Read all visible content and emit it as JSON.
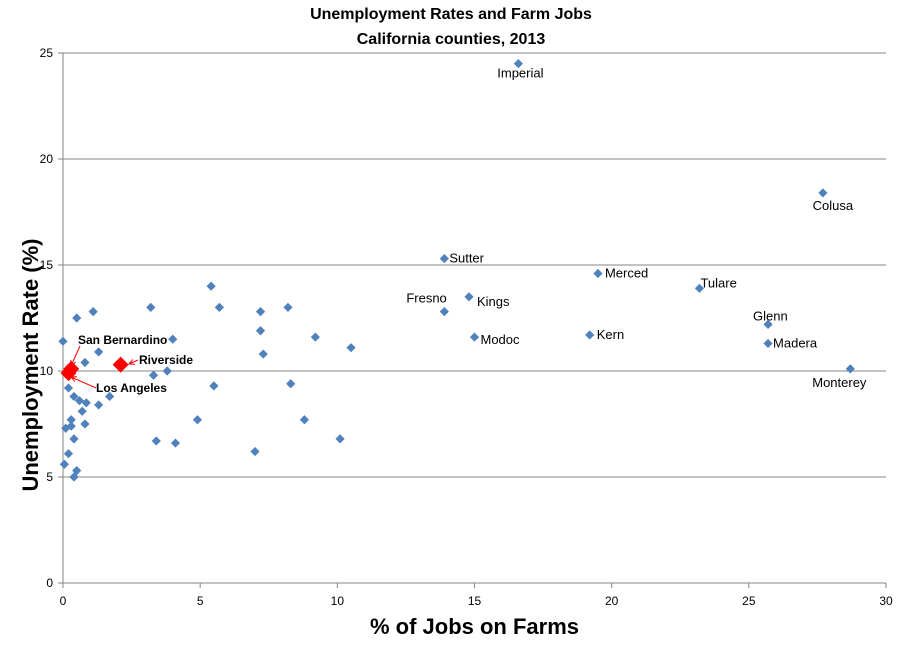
{
  "chart_data": {
    "type": "scatter",
    "title": "Unemployment Rates and Farm Jobs",
    "subtitle": "California counties, 2013",
    "xlabel": "% of Jobs on Farms",
    "ylabel": "Unemployment Rate (%)",
    "xlim": [
      0,
      30
    ],
    "ylim": [
      0,
      25
    ],
    "x_ticks": [
      0,
      5,
      10,
      15,
      20,
      25,
      30
    ],
    "y_ticks": [
      0,
      5,
      10,
      15,
      20,
      25
    ],
    "grid": "horizontal major gridlines",
    "colors": {
      "points": "#4f81bd",
      "highlight": "#ff0000",
      "grid": "#868686"
    },
    "points": [
      {
        "x": 16.6,
        "y": 24.5,
        "label": "Imperial"
      },
      {
        "x": 27.7,
        "y": 18.4,
        "label": "Colusa"
      },
      {
        "x": 13.9,
        "y": 15.3,
        "label": "Sutter"
      },
      {
        "x": 19.5,
        "y": 14.6,
        "label": "Merced"
      },
      {
        "x": 23.2,
        "y": 13.9,
        "label": "Tulare"
      },
      {
        "x": 14.8,
        "y": 13.5,
        "label": "Kings"
      },
      {
        "x": 13.9,
        "y": 12.8,
        "label": "Fresno"
      },
      {
        "x": 25.7,
        "y": 12.2,
        "label": "Glenn"
      },
      {
        "x": 15.0,
        "y": 11.6,
        "label": "Modoc"
      },
      {
        "x": 19.2,
        "y": 11.7,
        "label": "Kern"
      },
      {
        "x": 25.7,
        "y": 11.3,
        "label": "Madera"
      },
      {
        "x": 28.7,
        "y": 10.1,
        "label": "Monterey"
      },
      {
        "x": 5.4,
        "y": 14.0
      },
      {
        "x": 3.2,
        "y": 13.0
      },
      {
        "x": 5.7,
        "y": 13.0
      },
      {
        "x": 8.2,
        "y": 13.0
      },
      {
        "x": 7.2,
        "y": 12.8
      },
      {
        "x": 1.1,
        "y": 12.8
      },
      {
        "x": 0.5,
        "y": 12.5
      },
      {
        "x": 7.2,
        "y": 11.9
      },
      {
        "x": 4.0,
        "y": 11.5
      },
      {
        "x": 9.2,
        "y": 11.6
      },
      {
        "x": 0.0,
        "y": 11.4
      },
      {
        "x": 10.5,
        "y": 11.1
      },
      {
        "x": 1.3,
        "y": 10.9
      },
      {
        "x": 7.3,
        "y": 10.8
      },
      {
        "x": 0.8,
        "y": 10.4
      },
      {
        "x": 3.8,
        "y": 10.0
      },
      {
        "x": 3.3,
        "y": 9.8
      },
      {
        "x": 8.3,
        "y": 9.4
      },
      {
        "x": 5.5,
        "y": 9.3
      },
      {
        "x": 0.2,
        "y": 9.2
      },
      {
        "x": 1.7,
        "y": 8.8
      },
      {
        "x": 0.4,
        "y": 8.8
      },
      {
        "x": 0.6,
        "y": 8.6
      },
      {
        "x": 0.85,
        "y": 8.5
      },
      {
        "x": 1.3,
        "y": 8.4
      },
      {
        "x": 0.7,
        "y": 8.1
      },
      {
        "x": 4.9,
        "y": 7.7
      },
      {
        "x": 8.8,
        "y": 7.7
      },
      {
        "x": 0.3,
        "y": 7.7
      },
      {
        "x": 0.8,
        "y": 7.5
      },
      {
        "x": 0.3,
        "y": 7.4
      },
      {
        "x": 0.1,
        "y": 7.3
      },
      {
        "x": 3.4,
        "y": 6.7
      },
      {
        "x": 4.1,
        "y": 6.6
      },
      {
        "x": 10.1,
        "y": 6.8
      },
      {
        "x": 0.4,
        "y": 6.8
      },
      {
        "x": 7.0,
        "y": 6.2
      },
      {
        "x": 0.2,
        "y": 6.1
      },
      {
        "x": 0.05,
        "y": 5.6
      },
      {
        "x": 0.5,
        "y": 5.3
      },
      {
        "x": 0.4,
        "y": 5.0
      }
    ],
    "highlighted": [
      {
        "x": 0.3,
        "y": 10.1,
        "label": "San Bernardino"
      },
      {
        "x": 2.1,
        "y": 10.3,
        "label": "Riverside"
      },
      {
        "x": 0.2,
        "y": 9.9,
        "label": "Los Angeles"
      }
    ]
  }
}
